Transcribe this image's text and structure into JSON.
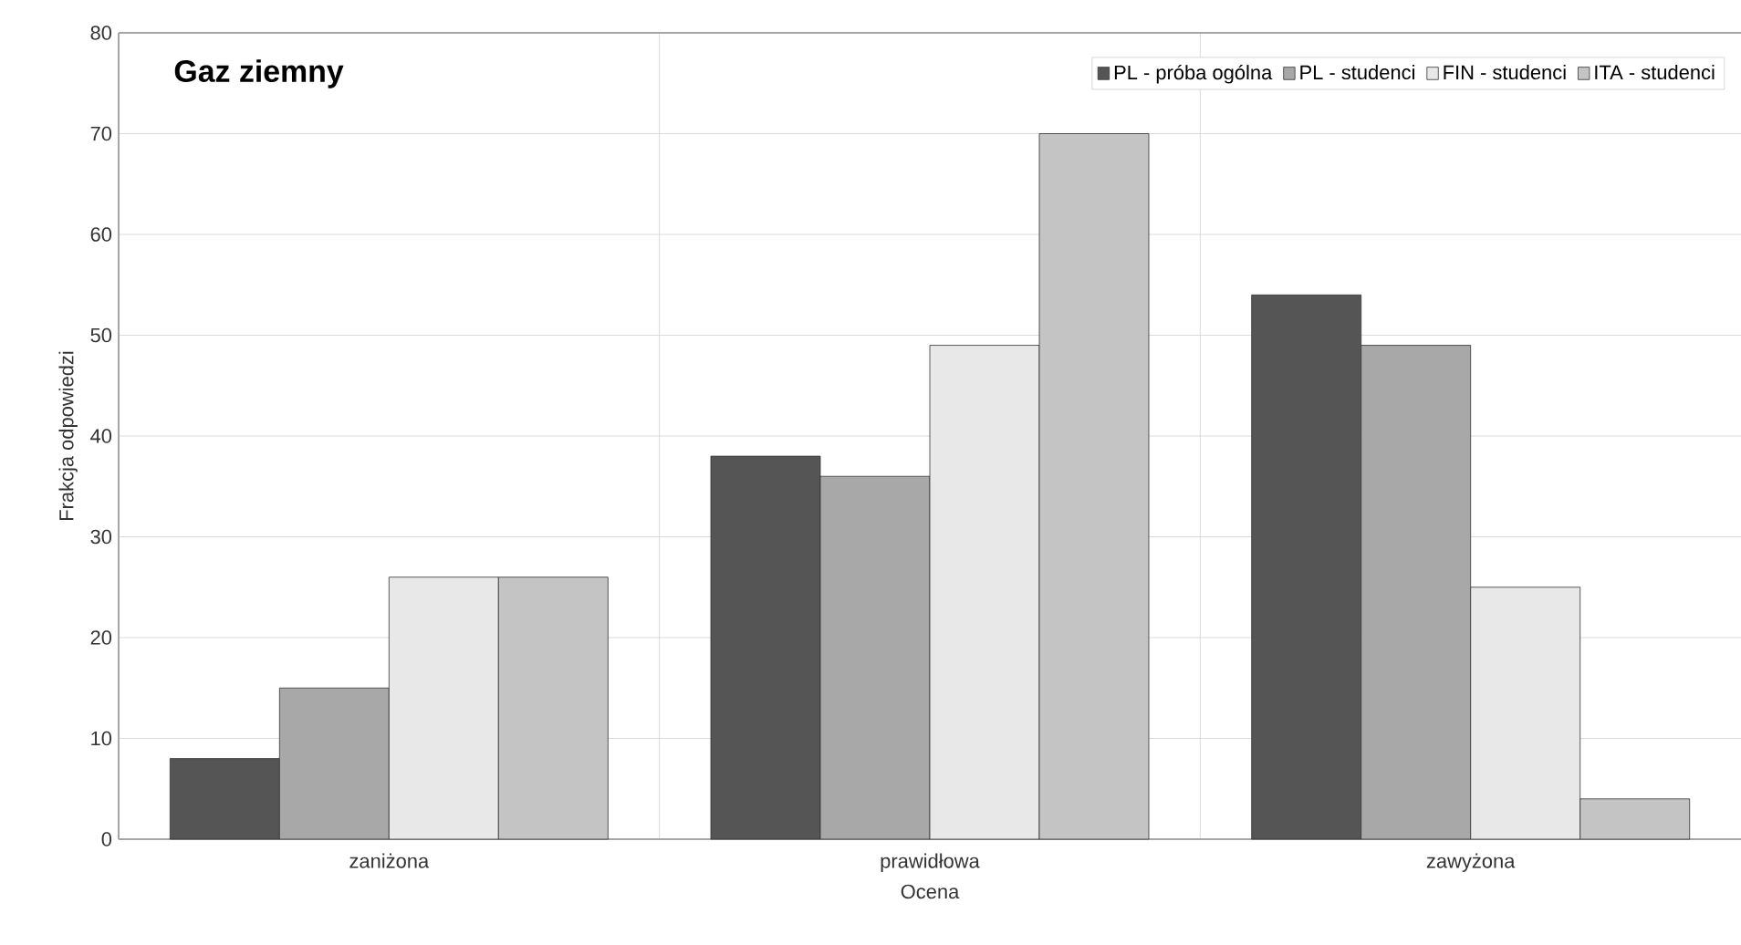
{
  "chart_data": {
    "type": "bar",
    "title": "Gaz ziemny",
    "xlabel": "Ocena",
    "ylabel": "Frakcja odpowiedzi",
    "categories": [
      "zaniżona",
      "prawidłowa",
      "zawyżona"
    ],
    "series": [
      {
        "name": "PL - próba ogólna",
        "color": "#555555",
        "values": [
          8,
          38,
          54
        ]
      },
      {
        "name": "PL - studenci",
        "color": "#a8a8a8",
        "values": [
          15,
          36,
          49
        ]
      },
      {
        "name": "FIN - studenci",
        "color": "#e8e8e8",
        "values": [
          26,
          49,
          25
        ]
      },
      {
        "name": "ITA - studenci",
        "color": "#c4c4c4",
        "values": [
          26,
          70,
          4
        ]
      }
    ],
    "ylim": [
      0,
      80
    ],
    "yticks": [
      0,
      10,
      20,
      30,
      40,
      50,
      60,
      70,
      80
    ],
    "grid": true,
    "legend": "top right"
  }
}
